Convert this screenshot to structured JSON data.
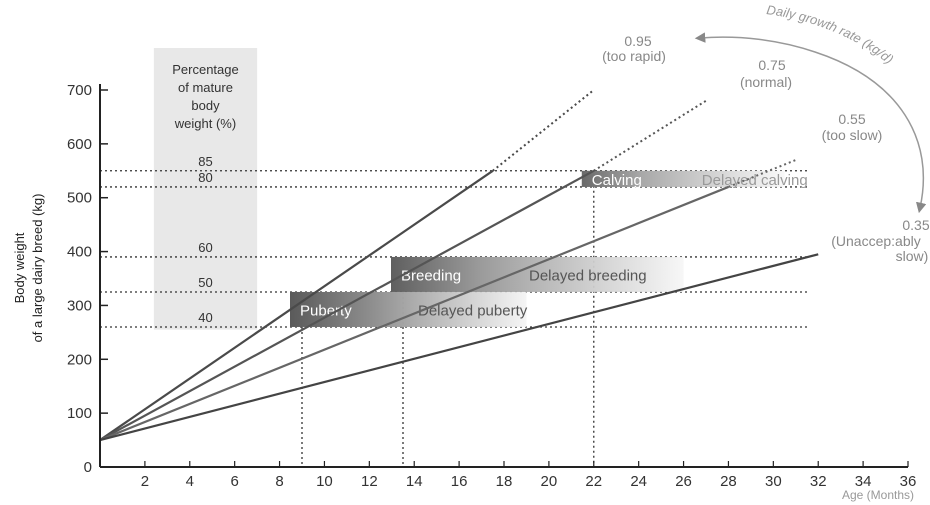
{
  "chart_data": {
    "type": "line",
    "xlabel": "Age (Months)",
    "ylabel_line1": "Body weight",
    "ylabel_line2": "of a large dairy breed (kg)",
    "xlim": [
      0,
      36
    ],
    "ylim": [
      0,
      700
    ],
    "y_ticks": [
      0,
      100,
      200,
      300,
      400,
      500,
      600,
      700
    ],
    "x_ticks": [
      2,
      4,
      6,
      8,
      10,
      12,
      14,
      16,
      18,
      20,
      22,
      24,
      26,
      28,
      30,
      32,
      34,
      36
    ],
    "initial_weight": 50,
    "growth_rate_title": "Daily growth rate (kg/d)",
    "series": [
      {
        "rate": "0.95",
        "note": "(too rapid)",
        "x": [
          0,
          17.5,
          22
        ],
        "y": [
          50,
          550,
          700
        ]
      },
      {
        "rate": "0.75",
        "note": "(normal)",
        "x": [
          0,
          22,
          27
        ],
        "y": [
          50,
          550,
          680
        ]
      },
      {
        "rate": "0.55",
        "note": "(too slow)",
        "x": [
          0,
          28,
          31
        ],
        "y": [
          50,
          520,
          570
        ]
      },
      {
        "rate": "0.35",
        "note": "(Unaccep:ably slow)",
        "x": [
          0,
          32
        ],
        "y": [
          50,
          395
        ]
      }
    ],
    "percentage_panel": {
      "title_line1": "Percentage",
      "title_line2": "of mature",
      "title_line3": "body",
      "title_line4": "weight (%)",
      "levels": [
        {
          "pct": "85",
          "kg": 550
        },
        {
          "pct": "80",
          "kg": 520
        },
        {
          "pct": "60",
          "kg": 390
        },
        {
          "pct": "50",
          "kg": 325
        },
        {
          "pct": "40",
          "kg": 260
        }
      ]
    },
    "stages": [
      {
        "label": "Puberty",
        "delayed": "Delayed puberty",
        "x_start": 9,
        "x_end": 19,
        "y_low": 260,
        "y_high": 325,
        "guide_x": 9
      },
      {
        "label": "Breeding",
        "delayed": "Delayed breeding",
        "x_start": 13.5,
        "x_end": 26,
        "y_low": 325,
        "y_high": 390,
        "guide_x": 13.5
      },
      {
        "label": "Calving",
        "delayed": "Delayed calving",
        "x_start": 22,
        "x_end": 30.5,
        "y_low": 520,
        "y_high": 550,
        "guide_x": 22
      }
    ]
  }
}
